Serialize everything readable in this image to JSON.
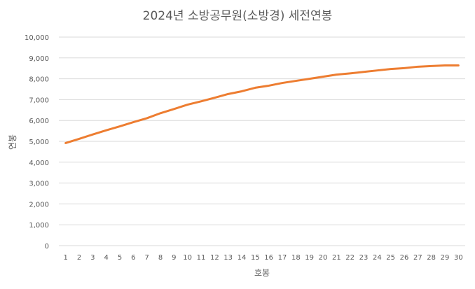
{
  "chart_data": {
    "type": "line",
    "title": "2024년 소방공무원(소방경) 세전연봉",
    "xlabel": "호봉",
    "ylabel": "연봉",
    "categories": [
      "1",
      "2",
      "3",
      "4",
      "5",
      "6",
      "7",
      "8",
      "9",
      "10",
      "11",
      "12",
      "13",
      "14",
      "15",
      "16",
      "17",
      "18",
      "19",
      "20",
      "21",
      "22",
      "23",
      "24",
      "25",
      "26",
      "27",
      "28",
      "29",
      "30"
    ],
    "yticks": [
      "0",
      "1,000",
      "2,000",
      "3,000",
      "4,000",
      "5,000",
      "6,000",
      "7,000",
      "8,000",
      "9,000",
      "10,000"
    ],
    "series": [
      {
        "values": [
          4920,
          5120,
          5330,
          5530,
          5720,
          5920,
          6110,
          6350,
          6550,
          6760,
          6920,
          7090,
          7270,
          7400,
          7570,
          7670,
          7800,
          7900,
          8000,
          8100,
          8200,
          8260,
          8330,
          8400,
          8470,
          8510,
          8580,
          8610,
          8640,
          8640
        ],
        "color": "#ED7D31"
      }
    ],
    "ylim": [
      0,
      10000
    ],
    "grid": true,
    "legend": "none"
  }
}
